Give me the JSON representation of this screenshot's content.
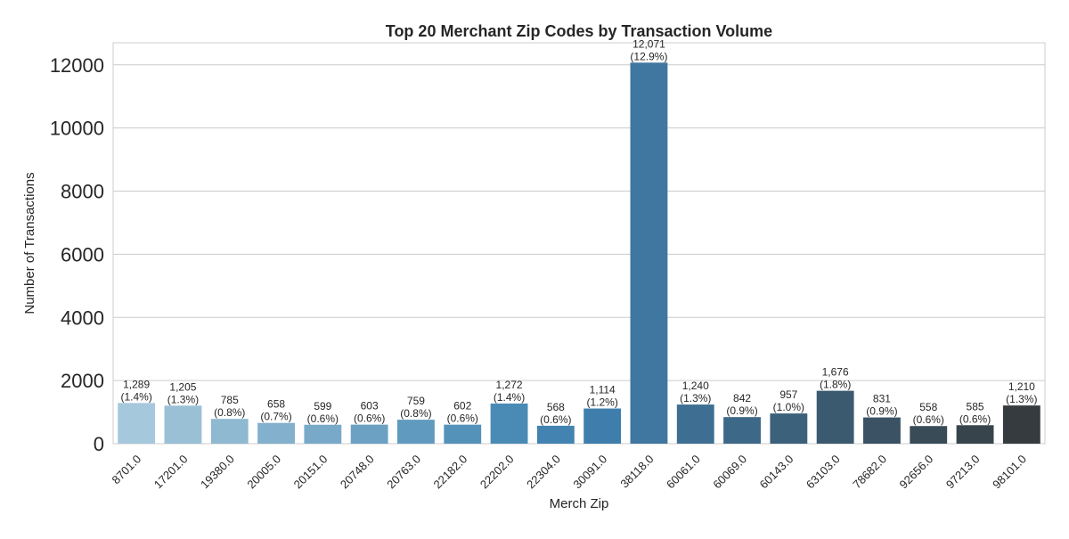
{
  "chart_data": {
    "type": "bar",
    "title": "Top 20 Merchant Zip Codes by Transaction Volume",
    "xlabel": "Merch Zip",
    "ylabel": "Number of Transactions",
    "ylim": [
      0,
      12700
    ],
    "yticks": [
      0,
      2000,
      4000,
      6000,
      8000,
      10000,
      12000
    ],
    "grid": true,
    "categories": [
      "8701.0",
      "17201.0",
      "19380.0",
      "20005.0",
      "20151.0",
      "20748.0",
      "20763.0",
      "22182.0",
      "22202.0",
      "22304.0",
      "30091.0",
      "38118.0",
      "60061.0",
      "60069.0",
      "60143.0",
      "63103.0",
      "78682.0",
      "92656.0",
      "97213.0",
      "98101.0"
    ],
    "values": [
      1289,
      1205,
      785,
      658,
      599,
      603,
      759,
      602,
      1272,
      568,
      1114,
      12071,
      1240,
      842,
      957,
      1676,
      831,
      558,
      585,
      1210
    ],
    "value_labels": [
      "1,289",
      "1,205",
      "785",
      "658",
      "599",
      "603",
      "759",
      "602",
      "1,272",
      "568",
      "1,114",
      "12,071",
      "1,240",
      "842",
      "957",
      "1,676",
      "831",
      "558",
      "585",
      "1,210"
    ],
    "percent_labels": [
      "(1.4%)",
      "(1.3%)",
      "(0.8%)",
      "(0.7%)",
      "(0.6%)",
      "(0.6%)",
      "(0.8%)",
      "(0.6%)",
      "(1.4%)",
      "(0.6%)",
      "(1.2%)",
      "(12.9%)",
      "(1.3%)",
      "(0.9%)",
      "(1.0%)",
      "(1.8%)",
      "(0.9%)",
      "(0.6%)",
      "(0.6%)",
      "(1.3%)"
    ],
    "colors": [
      "#a6c8dc",
      "#9ac0d6",
      "#8fb8d1",
      "#83b0cc",
      "#78a9c8",
      "#6ca1c3",
      "#619abf",
      "#5592ba",
      "#4a8bb6",
      "#4283b1",
      "#3f7eac",
      "#3f77a0",
      "#3e6f93",
      "#3d6887",
      "#3c617b",
      "#3b5a6f",
      "#3a5263",
      "#384b57",
      "#37444b",
      "#353b3f"
    ]
  }
}
